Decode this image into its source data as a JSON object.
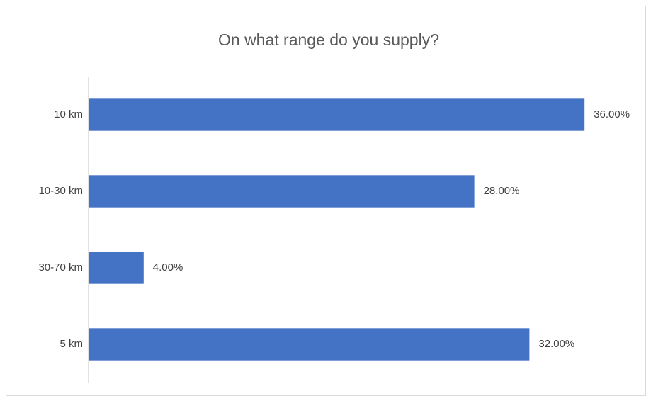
{
  "chart_data": {
    "type": "bar",
    "orientation": "horizontal",
    "title": "On what range do you supply?",
    "categories": [
      "10 km",
      "10-30 km",
      "30-70 km",
      "5 km"
    ],
    "values": [
      36,
      28,
      4,
      32
    ],
    "value_labels": [
      "36.00%",
      "28.00%",
      "4.00%",
      "32.00%"
    ],
    "color": "#4472c4",
    "xlim": [
      0,
      40
    ],
    "grid": false
  }
}
